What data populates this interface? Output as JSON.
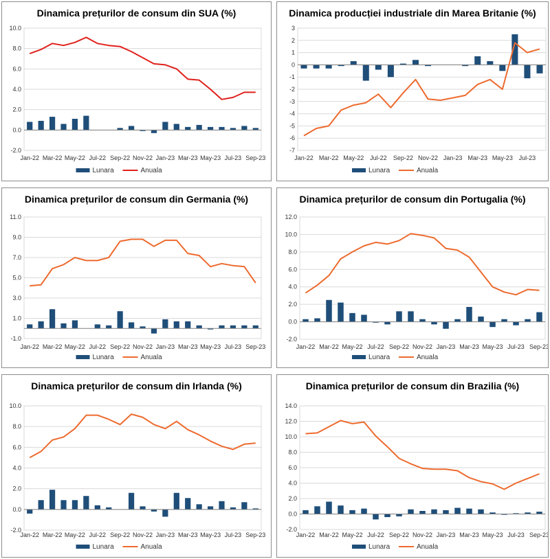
{
  "colors": {
    "bar": "#1f4e79",
    "line_red": "#e0201b",
    "line_orange": "#ed6a2e",
    "grid": "#d9d9d9",
    "axis": "#808080"
  },
  "chart_data": [
    {
      "type": "bar+line",
      "title": "Dinamica prețurilor de consum din SUA (%)",
      "categories": [
        "Jan-22",
        "Feb-22",
        "Mar-22",
        "Apr-22",
        "May-22",
        "Jun-22",
        "Jul-22",
        "Aug-22",
        "Sep-22",
        "Oct-22",
        "Nov-22",
        "Dec-22",
        "Jan-23",
        "Feb-23",
        "Mar-23",
        "Apr-23",
        "May-23",
        "Jun-23",
        "Jul-23",
        "Aug-23",
        "Sep-23"
      ],
      "x_tick_labels": [
        "Jan-22",
        "Mar-22",
        "May-22",
        "Jul-22",
        "Sep-22",
        "Nov-22",
        "Jan-23",
        "Mar-23",
        "May-23",
        "Jul-23",
        "Sep-23"
      ],
      "yticks": [
        "10.0",
        "8.0",
        "6.0",
        "4.0",
        "2.0",
        "0.0",
        "-2.0"
      ],
      "ylim": [
        -2,
        10
      ],
      "line_color": "red",
      "series": [
        {
          "name": "Lunara",
          "kind": "bar",
          "values": [
            0.8,
            0.9,
            1.3,
            0.6,
            1.1,
            1.4,
            0.0,
            0.0,
            0.2,
            0.4,
            -0.1,
            -0.3,
            0.8,
            0.6,
            0.3,
            0.5,
            0.3,
            0.3,
            0.2,
            0.4,
            0.2
          ]
        },
        {
          "name": "Anuala",
          "kind": "line",
          "values": [
            7.5,
            7.9,
            8.5,
            8.3,
            8.6,
            9.1,
            8.5,
            8.3,
            8.2,
            7.7,
            7.1,
            6.5,
            6.4,
            6.0,
            5.0,
            4.9,
            4.0,
            3.0,
            3.2,
            3.7,
            3.7
          ]
        }
      ]
    },
    {
      "type": "bar+line",
      "title": "Dinamica producției industriale din Marea Britanie (%)",
      "categories": [
        "Jan-22",
        "Feb-22",
        "Mar-22",
        "Apr-22",
        "May-22",
        "Jun-22",
        "Jul-22",
        "Aug-22",
        "Sep-22",
        "Oct-22",
        "Nov-22",
        "Dec-22",
        "Jan-23",
        "Feb-23",
        "Mar-23",
        "Apr-23",
        "May-23",
        "Jun-23",
        "Jul-23",
        "Aug-23"
      ],
      "x_tick_labels": [
        "Jan-22",
        "Mar-22",
        "May-22",
        "Jul-22",
        "Sep-22",
        "Nov-22",
        "Jan-23",
        "Mar-23",
        "May-23",
        "Jul-23"
      ],
      "yticks": [
        "3",
        "2",
        "1",
        "0",
        "-1",
        "-2",
        "-3",
        "-4",
        "-5",
        "-6",
        "-7"
      ],
      "ylim": [
        -7,
        3
      ],
      "line_color": "orange",
      "series": [
        {
          "name": "Lunara",
          "kind": "bar",
          "values": [
            -0.3,
            -0.3,
            -0.3,
            -0.1,
            0.3,
            -1.3,
            -0.4,
            -1.0,
            0.1,
            0.4,
            -0.1,
            0.0,
            0.0,
            -0.1,
            0.7,
            0.3,
            -0.5,
            2.5,
            -1.1,
            -0.7
          ]
        },
        {
          "name": "Anuala",
          "kind": "line",
          "values": [
            -5.8,
            -5.2,
            -5.0,
            -3.7,
            -3.3,
            -3.1,
            -2.4,
            -3.5,
            -2.3,
            -1.2,
            -2.8,
            -2.9,
            -2.7,
            -2.5,
            -1.6,
            -1.2,
            -2.0,
            1.8,
            1.0,
            1.3
          ]
        }
      ]
    },
    {
      "type": "bar+line",
      "title": "Dinamica prețurilor de consum din Germania (%)",
      "categories": [
        "Jan-22",
        "Feb-22",
        "Mar-22",
        "Apr-22",
        "May-22",
        "Jun-22",
        "Jul-22",
        "Aug-22",
        "Sep-22",
        "Oct-22",
        "Nov-22",
        "Dec-22",
        "Jan-23",
        "Feb-23",
        "Mar-23",
        "Apr-23",
        "May-23",
        "Jun-23",
        "Jul-23",
        "Aug-23",
        "Sep-23"
      ],
      "x_tick_labels": [
        "Jan-22",
        "Mar-22",
        "May-22",
        "Jul-22",
        "Sep-22",
        "Nov-22",
        "Jan-23",
        "Mar-23",
        "May-23",
        "Jul-23",
        "Sep-23"
      ],
      "yticks": [
        "11.0",
        "9.0",
        "7.0",
        "5.0",
        "3.0",
        "1.0",
        "-1.0"
      ],
      "ylim": [
        -1,
        11
      ],
      "line_color": "orange",
      "series": [
        {
          "name": "Lunara",
          "kind": "bar",
          "values": [
            0.4,
            0.7,
            1.9,
            0.5,
            0.8,
            0.0,
            0.4,
            0.3,
            1.7,
            0.6,
            0.2,
            -0.5,
            0.9,
            0.7,
            0.7,
            0.3,
            -0.1,
            0.3,
            0.3,
            0.3,
            0.3
          ]
        },
        {
          "name": "Anuala",
          "kind": "line",
          "values": [
            4.2,
            4.3,
            5.9,
            6.3,
            7.0,
            6.7,
            6.7,
            7.0,
            8.6,
            8.8,
            8.8,
            8.1,
            8.7,
            8.7,
            7.4,
            7.2,
            6.1,
            6.4,
            6.2,
            6.1,
            4.5
          ]
        }
      ]
    },
    {
      "type": "bar+line",
      "title": "Dinamica prețurilor de consum din Portugalia (%)",
      "categories": [
        "Jan-22",
        "Feb-22",
        "Mar-22",
        "Apr-22",
        "May-22",
        "Jun-22",
        "Jul-22",
        "Aug-22",
        "Sep-22",
        "Oct-22",
        "Nov-22",
        "Dec-22",
        "Jan-23",
        "Feb-23",
        "Mar-23",
        "Apr-23",
        "May-23",
        "Jun-23",
        "Jul-23",
        "Aug-23",
        "Sep-23"
      ],
      "x_tick_labels": [
        "Jan-22",
        "Mar-22",
        "May-22",
        "Jul-22",
        "Sep-22",
        "Nov-22",
        "Jan-23",
        "Mar-23",
        "May-23",
        "Jul-23",
        "Sep-23"
      ],
      "yticks": [
        "12.0",
        "10.0",
        "8.0",
        "6.0",
        "4.0",
        "2.0",
        "0.0",
        "-2.0"
      ],
      "ylim": [
        -2,
        12
      ],
      "line_color": "orange",
      "series": [
        {
          "name": "Lunara",
          "kind": "bar",
          "values": [
            0.3,
            0.4,
            2.5,
            2.2,
            1.0,
            0.8,
            -0.1,
            -0.3,
            1.2,
            1.2,
            0.3,
            -0.3,
            -0.8,
            0.3,
            1.7,
            0.6,
            -0.6,
            0.3,
            -0.4,
            0.3,
            1.1
          ]
        },
        {
          "name": "Anuala",
          "kind": "line",
          "values": [
            3.3,
            4.2,
            5.3,
            7.2,
            8.0,
            8.7,
            9.1,
            8.9,
            9.3,
            10.1,
            9.9,
            9.6,
            8.4,
            8.2,
            7.4,
            5.7,
            4.0,
            3.4,
            3.1,
            3.7,
            3.6
          ]
        }
      ]
    },
    {
      "type": "bar+line",
      "title": "Dinamica prețurilor de consum din Irlanda (%)",
      "categories": [
        "Jan-22",
        "Feb-22",
        "Mar-22",
        "Apr-22",
        "May-22",
        "Jun-22",
        "Jul-22",
        "Aug-22",
        "Sep-22",
        "Oct-22",
        "Nov-22",
        "Dec-22",
        "Jan-23",
        "Feb-23",
        "Mar-23",
        "Apr-23",
        "May-23",
        "Jun-23",
        "Jul-23",
        "Aug-23",
        "Sep-23"
      ],
      "x_tick_labels": [
        "Jan-22",
        "Mar-22",
        "May-22",
        "Jul-22",
        "Sep-22",
        "Nov-22",
        "Jan-23",
        "Mar-23",
        "May-23",
        "Jul-23",
        "Sep-23"
      ],
      "yticks": [
        "10.0",
        "8.0",
        "6.0",
        "4.0",
        "2.0",
        "0.0",
        "-2.0"
      ],
      "ylim": [
        -2,
        10
      ],
      "line_color": "orange",
      "series": [
        {
          "name": "Lunara",
          "kind": "bar",
          "values": [
            -0.4,
            0.9,
            1.9,
            0.9,
            0.9,
            1.3,
            0.4,
            0.2,
            0.0,
            1.6,
            0.3,
            -0.2,
            -0.7,
            1.6,
            1.1,
            0.5,
            0.3,
            0.8,
            0.2,
            0.7,
            0.1
          ]
        },
        {
          "name": "Anuala",
          "kind": "line",
          "values": [
            5.0,
            5.6,
            6.7,
            7.0,
            7.8,
            9.1,
            9.1,
            8.7,
            8.2,
            9.2,
            8.9,
            8.2,
            7.8,
            8.5,
            7.7,
            7.2,
            6.6,
            6.1,
            5.8,
            6.3,
            6.4
          ]
        }
      ]
    },
    {
      "type": "bar+line",
      "title": "Dinamica prețurilor de consum din Brazilia (%)",
      "categories": [
        "Jan-22",
        "Feb-22",
        "Mar-22",
        "Apr-22",
        "May-22",
        "Jun-22",
        "Jul-22",
        "Aug-22",
        "Sep-22",
        "Oct-22",
        "Nov-22",
        "Dec-22",
        "Jan-23",
        "Feb-23",
        "Mar-23",
        "Apr-23",
        "May-23",
        "Jun-23",
        "Jul-23",
        "Aug-23",
        "Sep-23"
      ],
      "x_tick_labels": [
        "Jan-22",
        "Mar-22",
        "May-22",
        "Jul-22",
        "Sep-22",
        "Nov-22",
        "Jan-23",
        "Mar-23",
        "May-23",
        "Jul-23",
        "Sep-23"
      ],
      "yticks": [
        "14.0",
        "12.0",
        "10.0",
        "8.0",
        "6.0",
        "4.0",
        "2.0",
        "0.0",
        "-2.0"
      ],
      "ylim": [
        -2,
        14
      ],
      "line_color": "orange",
      "series": [
        {
          "name": "Lunara",
          "kind": "bar",
          "values": [
            0.5,
            1.0,
            1.6,
            1.1,
            0.5,
            0.7,
            -0.7,
            -0.4,
            -0.3,
            0.6,
            0.4,
            0.6,
            0.5,
            0.8,
            0.7,
            0.6,
            0.2,
            -0.1,
            0.1,
            0.2,
            0.3
          ]
        },
        {
          "name": "Anuala",
          "kind": "line",
          "values": [
            10.4,
            10.5,
            11.3,
            12.1,
            11.7,
            11.9,
            10.1,
            8.7,
            7.2,
            6.5,
            5.9,
            5.8,
            5.8,
            5.6,
            4.7,
            4.2,
            3.9,
            3.2,
            4.0,
            4.6,
            5.2
          ]
        }
      ]
    }
  ]
}
